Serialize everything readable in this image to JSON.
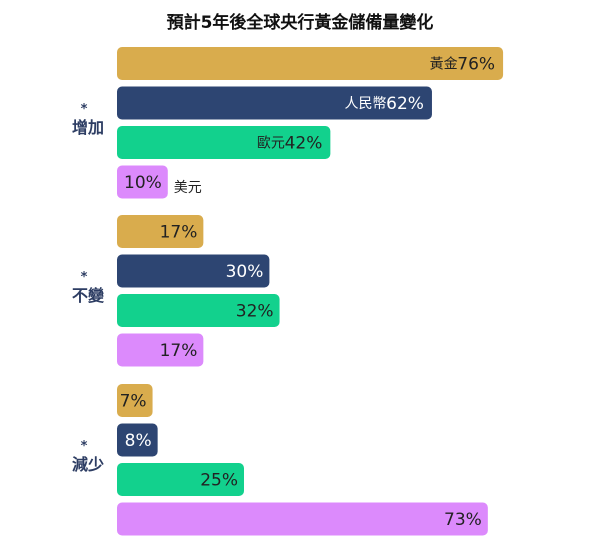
{
  "chart_data": {
    "type": "bar",
    "orientation": "horizontal",
    "title": "預計5年後全球央行黃金儲備量變化",
    "categories": [
      "增加",
      "不變",
      "減少"
    ],
    "category_marker": "*",
    "xlim": [
      0,
      100
    ],
    "value_suffix": "%",
    "series": [
      {
        "name": "黃金",
        "color": "#d9ac4d",
        "values": [
          76,
          17,
          7
        ]
      },
      {
        "name": "人民幣",
        "color": "#2d4572",
        "values": [
          62,
          30,
          8
        ]
      },
      {
        "name": "歐元",
        "color": "#12d18d",
        "values": [
          42,
          32,
          25
        ]
      },
      {
        "name": "美元",
        "color": "#dc8afc",
        "values": [
          10,
          17,
          73
        ]
      }
    ],
    "value_label_colors": {
      "黃金": "#222222",
      "人民幣": "#ffffff",
      "歐元": "#222222",
      "美元": "#222222"
    },
    "grid": false,
    "legend": "inline labels in first group"
  }
}
